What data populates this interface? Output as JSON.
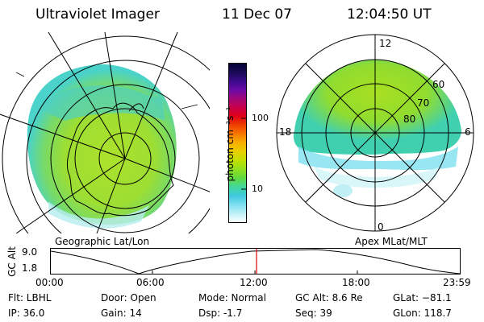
{
  "header": {
    "title": "Ultraviolet Imager",
    "date": "11 Dec 07",
    "time": "12:04:50 UT"
  },
  "left_panel": {
    "label": "Geographic Lat/Lon"
  },
  "right_panel": {
    "label": "Apex MLat/MLT",
    "mlt_labels": {
      "top": "12",
      "left": "18",
      "right": "6",
      "bottom": "0"
    },
    "lat_labels": [
      "60",
      "70",
      "80"
    ]
  },
  "colorbar": {
    "unit_label": "photon cm⁻²s⁻¹",
    "ticks": [
      "100",
      "10"
    ],
    "colors": [
      "#000033",
      "#1a0a55",
      "#3a0a8a",
      "#6a0aa8",
      "#a0087a",
      "#c8004a",
      "#e00018",
      "#f04000",
      "#f87800",
      "#f8b000",
      "#e8d000",
      "#c0e000",
      "#90e020",
      "#60d840",
      "#40d8a0",
      "#40c8e0",
      "#80e0f0",
      "#c0f0f8",
      "#ffffff"
    ]
  },
  "timeline": {
    "y_label": "GC Alt",
    "y_ticks": [
      "9.0",
      "1.8"
    ],
    "x_ticks": [
      "00:00",
      "06:00",
      "12:00",
      "18:00",
      "23:59"
    ],
    "current_time_fraction": 0.503
  },
  "footer": {
    "flt": "Flt: LBHL",
    "ip": "IP: 36.0",
    "door": "Door: Open",
    "gain": "Gain: 14",
    "mode": "Mode: Normal",
    "dsp": "Dsp:    -1.7",
    "gc_alt": "GC Alt: 8.6 Re",
    "seq": "Seq: 39",
    "glat": "GLat: −81.1",
    "glon": "GLon: 118.7"
  }
}
